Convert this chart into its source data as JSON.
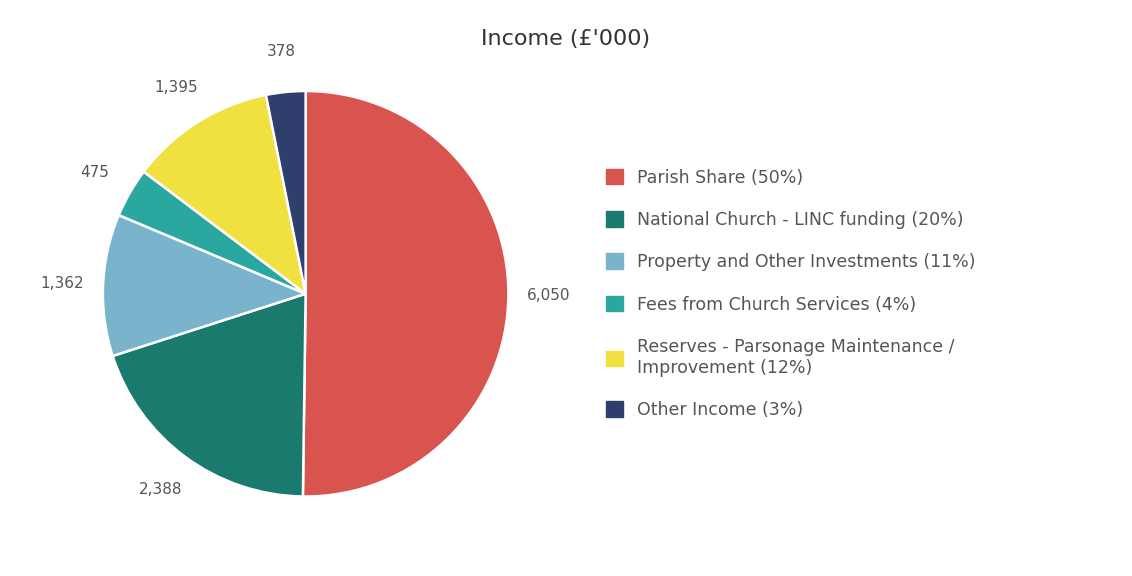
{
  "title": "Income (£'000)",
  "slices": [
    {
      "label": "Parish Share (50%)",
      "value": 6050,
      "color": "#d9534f",
      "autotext": "6,050"
    },
    {
      "label": "National Church - LINC funding (20%)",
      "value": 2388,
      "color": "#1a7a6e",
      "autotext": "2,388"
    },
    {
      "label": "Property and Other Investments (11%)",
      "value": 1362,
      "color": "#7ab3cc",
      "autotext": "1,362"
    },
    {
      "label": "Fees from Church Services (4%)",
      "value": 475,
      "color": "#2aa8a0",
      "autotext": "475"
    },
    {
      "label": "Reserves - Parsonage Maintenance /\nImprovement (12%)",
      "value": 1395,
      "color": "#f0e040",
      "autotext": "1,395"
    },
    {
      "label": "Other Income (3%)",
      "value": 378,
      "color": "#2e3f6e",
      "autotext": "378"
    }
  ],
  "legend_fontsize": 12.5,
  "title_fontsize": 16,
  "label_fontsize": 11,
  "background_color": "#ffffff",
  "startangle": 90
}
